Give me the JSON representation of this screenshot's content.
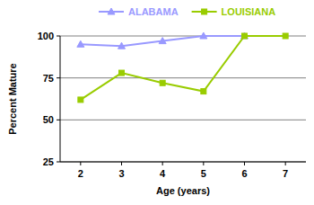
{
  "chart_data": {
    "type": "line",
    "x_label": "Age (years)",
    "y_label": "Percent Mature",
    "x": [
      2,
      3,
      4,
      5,
      6,
      7
    ],
    "xlim": [
      1.5,
      7.5
    ],
    "xticks": [
      2,
      3,
      4,
      5,
      6,
      7
    ],
    "ylim": [
      25,
      100
    ],
    "yticks": [
      25,
      50,
      75,
      100
    ],
    "grid": true,
    "legend": "top",
    "series": [
      {
        "name": "ALABAMA",
        "color": "#9999ff",
        "marker": "triangle",
        "values": [
          95,
          94,
          97,
          100,
          100,
          null
        ]
      },
      {
        "name": "LOUISIANA",
        "color": "#99cc00",
        "marker": "square",
        "values": [
          62,
          78,
          72,
          67,
          100,
          100
        ]
      }
    ]
  }
}
